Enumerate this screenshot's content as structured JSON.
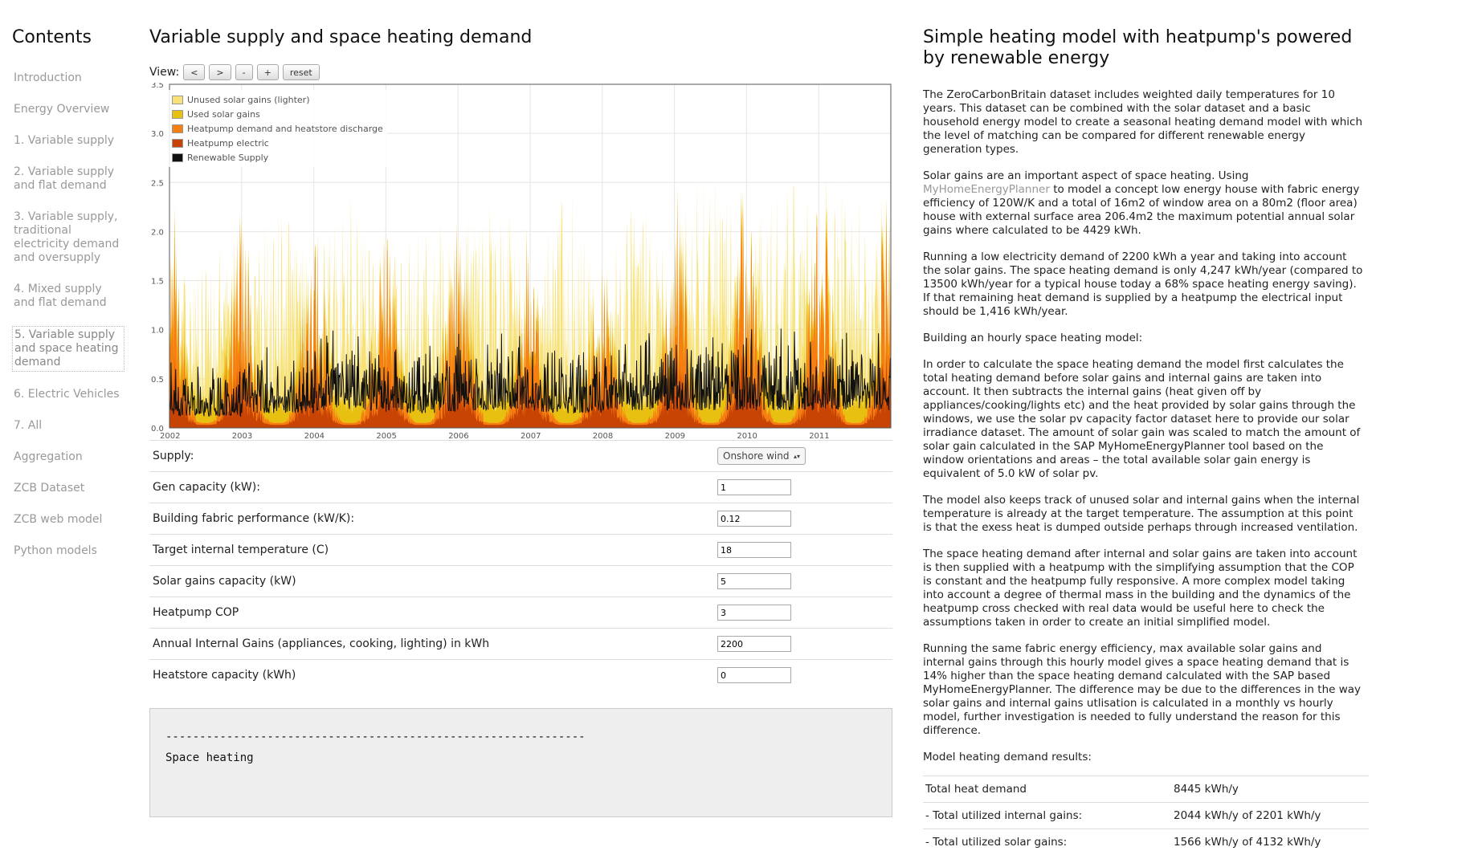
{
  "sidebar": {
    "title": "Contents",
    "items": [
      {
        "label": "Introduction",
        "active": false
      },
      {
        "label": "Energy Overview",
        "active": false
      },
      {
        "label": "1. Variable supply",
        "active": false
      },
      {
        "label": "2. Variable supply and flat demand",
        "active": false
      },
      {
        "label": "3. Variable supply, traditional electricity demand and oversupply",
        "active": false
      },
      {
        "label": "4. Mixed supply and flat demand",
        "active": false
      },
      {
        "label": "5. Variable supply and space heating demand",
        "active": true
      },
      {
        "label": "6. Electric Vehicles",
        "active": false
      },
      {
        "label": "7. All",
        "active": false
      },
      {
        "label": "Aggregation",
        "active": false
      },
      {
        "label": "ZCB Dataset",
        "active": false
      },
      {
        "label": "ZCB web model",
        "active": false
      },
      {
        "label": "Python models",
        "active": false
      }
    ]
  },
  "main": {
    "title": "Variable supply and space heating demand",
    "view_label": "View:",
    "view_buttons": [
      "<",
      ">",
      "-",
      "+",
      "reset"
    ],
    "params": [
      {
        "label": "Supply:",
        "type": "select",
        "value": "Onshore wind"
      },
      {
        "label": "Gen capacity (kW):",
        "type": "text",
        "value": "1"
      },
      {
        "label": "Building fabric performance (kW/K):",
        "type": "text",
        "value": "0.12"
      },
      {
        "label": "Target internal temperature (C)",
        "type": "text",
        "value": "18"
      },
      {
        "label": "Solar gains capacity (kW)",
        "type": "text",
        "value": "5"
      },
      {
        "label": "Heatpump COP",
        "type": "text",
        "value": "3"
      },
      {
        "label": "Annual Internal Gains (appliances, cooking, lighting) in kWh",
        "type": "text",
        "value": "2200"
      },
      {
        "label": "Heatstore capacity (kWh)",
        "type": "text",
        "value": "0"
      }
    ],
    "output_lines": [
      "--------------------------------------------------------------",
      "Space heating"
    ]
  },
  "chart_data": {
    "type": "area",
    "x_tick_labels": [
      "2002",
      "2003",
      "2004",
      "2005",
      "2006",
      "2007",
      "2008",
      "2009",
      "2010",
      "2011"
    ],
    "y_tick_labels": [
      "0.0",
      "0.5",
      "1.0",
      "1.5",
      "2.0",
      "2.5",
      "3.0",
      "3.5"
    ],
    "ylim": [
      0,
      3.5
    ],
    "xlim": [
      2002,
      2012
    ],
    "legend_placement": "top-left",
    "legend": [
      {
        "name": "Unused solar gains (lighter)",
        "color": "#f7e27a"
      },
      {
        "name": "Used solar gains",
        "color": "#e8c012"
      },
      {
        "name": "Heatpump demand and heatstore discharge",
        "color": "#f57f12"
      },
      {
        "name": "Heatpump electric",
        "color": "#c84404"
      },
      {
        "name": "Renewable Supply",
        "color": "#111111"
      }
    ],
    "approx_series_peaks": {
      "years": [
        2002,
        2003,
        2004,
        2005,
        2006,
        2007,
        2008,
        2009,
        2010,
        2011
      ],
      "heatpump_demand_winter_peak": [
        2.4,
        1.9,
        2.0,
        2.0,
        2.1,
        1.6,
        1.6,
        2.5,
        2.1,
        2.6
      ],
      "renewable_supply_typical": [
        0.4,
        0.5,
        0.6,
        0.5,
        0.6,
        0.5,
        0.6,
        0.6,
        0.6,
        0.6
      ],
      "unused_solar_summer_peak": [
        1.6,
        2.0,
        2.2,
        1.8,
        2.3,
        2.1,
        2.0,
        2.4,
        2.3,
        2.2
      ]
    }
  },
  "right": {
    "title": "Simple heating model with heatpump's powered by renewable energy",
    "p1": "The ZeroCarbonBritain dataset includes weighted daily temperatures for 10 years. This dataset can be combined with the solar dataset and a basic household energy model to create a seasonal heating demand model with which the level of matching can be compared for different renewable energy generation types.",
    "p2a": "Solar gains are an important aspect of space heating. Using ",
    "p2_link": "MyHomeEnergyPlanner",
    "p2b": " to model a concept low energy house with fabric energy efficiency of 120W/K and a total of 16m2 of window area on a 80m2 (floor area) house with external surface area 206.4m2 the maximum potential annual solar gains where calculated to be 4429 kWh.",
    "p3": "Running a low electricity demand of 2200 kWh a year and taking into account the solar gains. The space heating demand is only 4,247 kWh/year (compared to 13500 kWh/year for a typical house today a 68% space heating energy saving). If that remaining heat demand is supplied by a heatpump the electrical input should be 1,416 kWh/year.",
    "p4": "Building an hourly space heating model:",
    "p5": "In order to calculate the space heating demand the model first calculates the total heating demand before solar gains and internal gains are taken into account. It then subtracts the internal gains (heat given off by appliances/cooking/lights etc) and the heat provided by solar gains through the windows, we use the solar pv capacity factor dataset here to provide our solar irradiance dataset. The amount of solar gain was scaled to match the amount of solar gain calculated in the SAP MyHomeEnergyPlanner tool based on the window orientations and areas – the total available solar gain energy is equivalent of 5.0 kW of solar pv.",
    "p6": "The model also keeps track of unused solar and internal gains when the internal temperature is already at the target temperature. The assumption at this point is that the exess heat is dumped outside perhaps through increased ventilation.",
    "p7": "The space heating demand after internal and solar gains are taken into account is then supplied with a heatpump with the simplifying assumption that the COP is constant and the heatpump fully responsive. A more complex model taking into account a degree of thermal mass in the building and the dynamics of the heatpump cross checked with real data would be useful here to check the assumptions taken in order to create an initial simplified model.",
    "p8": "Running the same fabric energy efficiency, max available solar gains and internal gains through this hourly model gives a space heating demand that is 14% higher than the space heating demand calculated with the SAP based MyHomeEnergyPlanner. The difference may be due to the differences in the way solar gains and internal gains utlisation is calculated in a monthly vs hourly model, further investigation is needed to fully understand the reason for this difference.",
    "p9": "Model heating demand results:",
    "results": [
      {
        "label": "Total heat demand",
        "value": "8445 kWh/y"
      },
      {
        "label": "- Total utilized internal gains:",
        "value": "2044 kWh/y of 2201 kWh/y"
      },
      {
        "label": "- Total utilized solar gains:",
        "value": "1566 kWh/y of 4132 kWh/y"
      }
    ]
  }
}
